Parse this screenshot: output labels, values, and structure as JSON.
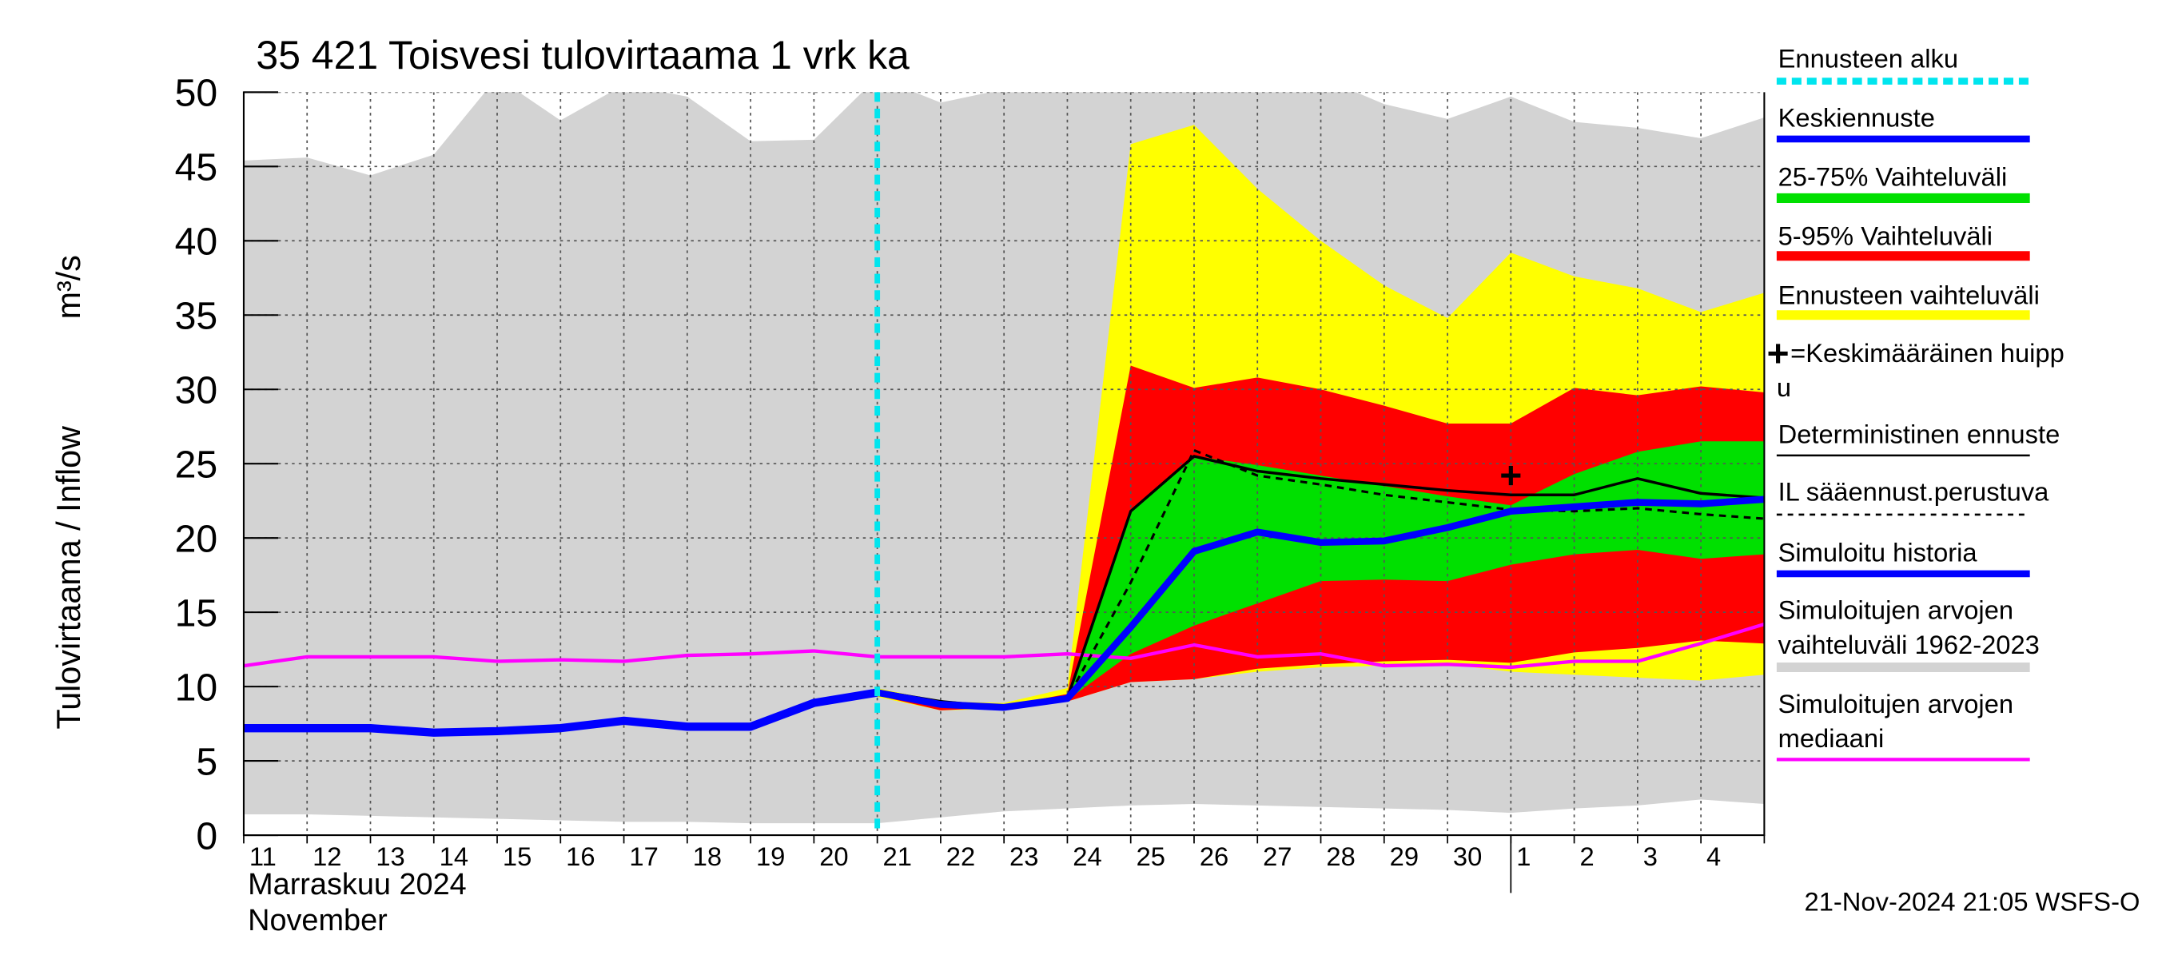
{
  "chart_data": {
    "type": "line",
    "title": "35 421 Toisvesi tulovirtaama 1 vrk ka",
    "y_label": "Tulovirtaama / Inflow",
    "y_unit": "m³/s",
    "x_labels": [
      "Marraskuu 2024",
      "November"
    ],
    "footer": "21-Nov-2024 21:05 WSFS-O",
    "categories": [
      "11",
      "12",
      "13",
      "14",
      "15",
      "16",
      "17",
      "18",
      "19",
      "20",
      "21",
      "22",
      "23",
      "24",
      "25",
      "26",
      "27",
      "28",
      "29",
      "30",
      "1",
      "2",
      "3",
      "4",
      null
    ],
    "month_break": "1",
    "ylim": [
      0,
      50
    ],
    "yticks": [
      0,
      5,
      10,
      15,
      20,
      25,
      30,
      35,
      40,
      45,
      50
    ],
    "grid": true,
    "bands": [
      {
        "name": "Simuloitujen arvojen vaihteluväli 1962-2023",
        "color": "#d3d3d3",
        "upper": [
          45.4,
          45.6,
          44.4,
          45.8,
          51,
          48.1,
          50.5,
          49.7,
          46.7,
          46.8,
          51,
          49.3,
          50.2,
          51,
          51,
          51,
          51,
          51,
          49.2,
          48.2,
          49.7,
          48,
          47.6,
          46.9,
          48.3
        ],
        "lower": [
          1.4,
          1.4,
          1.3,
          1.2,
          1.1,
          1.0,
          0.9,
          0.9,
          0.8,
          0.8,
          0.8,
          1.2,
          1.6,
          1.8,
          2.0,
          2.1,
          2.0,
          1.9,
          1.8,
          1.7,
          1.5,
          1.8,
          2.0,
          2.4,
          2.1
        ]
      },
      {
        "name": "Ennusteen vaihteluväli",
        "color": "#ffff00",
        "upper": [
          null,
          null,
          null,
          null,
          null,
          null,
          null,
          null,
          null,
          null,
          9.9,
          9.0,
          8.9,
          9.9,
          46.5,
          47.8,
          43.5,
          40.0,
          37.0,
          34.8,
          39.2,
          37.6,
          36.8,
          35.2,
          36.5
        ],
        "lower": [
          null,
          null,
          null,
          null,
          null,
          null,
          null,
          null,
          null,
          null,
          9.3,
          8.4,
          8.5,
          9.0,
          10.3,
          10.5,
          11.0,
          11.3,
          11.4,
          11.5,
          11.0,
          10.8,
          10.6,
          10.4,
          10.8
        ]
      },
      {
        "name": "5-95% Vaihteluväli",
        "color": "#ff0000",
        "upper": [
          null,
          null,
          null,
          null,
          null,
          null,
          null,
          null,
          null,
          null,
          9.8,
          8.9,
          8.7,
          9.5,
          31.6,
          30.1,
          30.8,
          30.0,
          28.9,
          27.7,
          27.7,
          30.1,
          29.6,
          30.2,
          29.8
        ],
        "lower": [
          null,
          null,
          null,
          null,
          null,
          null,
          null,
          null,
          null,
          null,
          9.4,
          8.4,
          8.6,
          9.0,
          10.3,
          10.5,
          11.2,
          11.5,
          11.7,
          11.8,
          11.6,
          12.3,
          12.6,
          13.1,
          12.9
        ]
      },
      {
        "name": "25-75% Vaihteluväli",
        "color": "#00e000",
        "upper": [
          null,
          null,
          null,
          null,
          null,
          null,
          null,
          null,
          null,
          null,
          9.7,
          8.9,
          8.7,
          9.3,
          21.8,
          25.5,
          24.9,
          24.2,
          23.5,
          22.8,
          22.2,
          24.3,
          25.8,
          26.5,
          26.5
        ],
        "lower": [
          null,
          null,
          null,
          null,
          null,
          null,
          null,
          null,
          null,
          null,
          9.5,
          8.6,
          8.6,
          9.1,
          12.2,
          14.1,
          15.6,
          17.1,
          17.2,
          17.1,
          18.2,
          18.9,
          19.2,
          18.6,
          18.9
        ]
      }
    ],
    "series": [
      {
        "name": "Simuloitujen arvojen mediaani",
        "color": "#ff00ff",
        "width": 2.5,
        "values": [
          11.4,
          12.0,
          12.0,
          12.0,
          11.7,
          11.8,
          11.7,
          12.1,
          12.2,
          12.4,
          12.0,
          12.0,
          12.0,
          12.2,
          11.9,
          12.8,
          12.0,
          12.2,
          11.4,
          11.5,
          11.3,
          11.7,
          11.7,
          12.9,
          14.2
        ]
      },
      {
        "name": "Simuloitu historia",
        "color": "#0000ff",
        "width": 6,
        "values": [
          7.2,
          7.2,
          7.2,
          6.9,
          7.0,
          7.2,
          7.7,
          7.3,
          7.3,
          8.9,
          9.6,
          null,
          null,
          null,
          null,
          null,
          null,
          null,
          null,
          null,
          null,
          null,
          null,
          null,
          null
        ]
      },
      {
        "name": "IL sääennust.perustuva",
        "color": "#000000",
        "width": 1.8,
        "dashed": true,
        "values": [
          null,
          null,
          null,
          null,
          null,
          null,
          null,
          null,
          null,
          null,
          9.7,
          9.0,
          8.6,
          9.2,
          17.0,
          25.9,
          24.2,
          23.6,
          22.9,
          22.4,
          21.9,
          21.8,
          22.0,
          21.6,
          21.3
        ]
      },
      {
        "name": "Deterministinen ennuste",
        "color": "#000000",
        "width": 2,
        "values": [
          null,
          null,
          null,
          null,
          null,
          null,
          null,
          null,
          null,
          null,
          9.7,
          9.0,
          8.6,
          9.2,
          21.8,
          25.5,
          24.5,
          24.0,
          23.6,
          23.2,
          22.9,
          22.9,
          24.0,
          23.0,
          22.7
        ]
      },
      {
        "name": "Keskiennuste",
        "color": "#0000ff",
        "width": 5,
        "values": [
          null,
          null,
          null,
          null,
          null,
          null,
          null,
          null,
          null,
          null,
          9.6,
          8.8,
          8.6,
          9.2,
          14.0,
          19.1,
          20.4,
          19.7,
          19.8,
          20.7,
          21.8,
          22.1,
          22.4,
          22.3,
          22.6
        ]
      }
    ],
    "forecast_start": {
      "name": "Ennusteen alku",
      "color": "#00e5ee",
      "category": "21"
    },
    "peak": {
      "name": "=Keskimääräinen huippu",
      "category": "1",
      "value": 24.2
    }
  }
}
